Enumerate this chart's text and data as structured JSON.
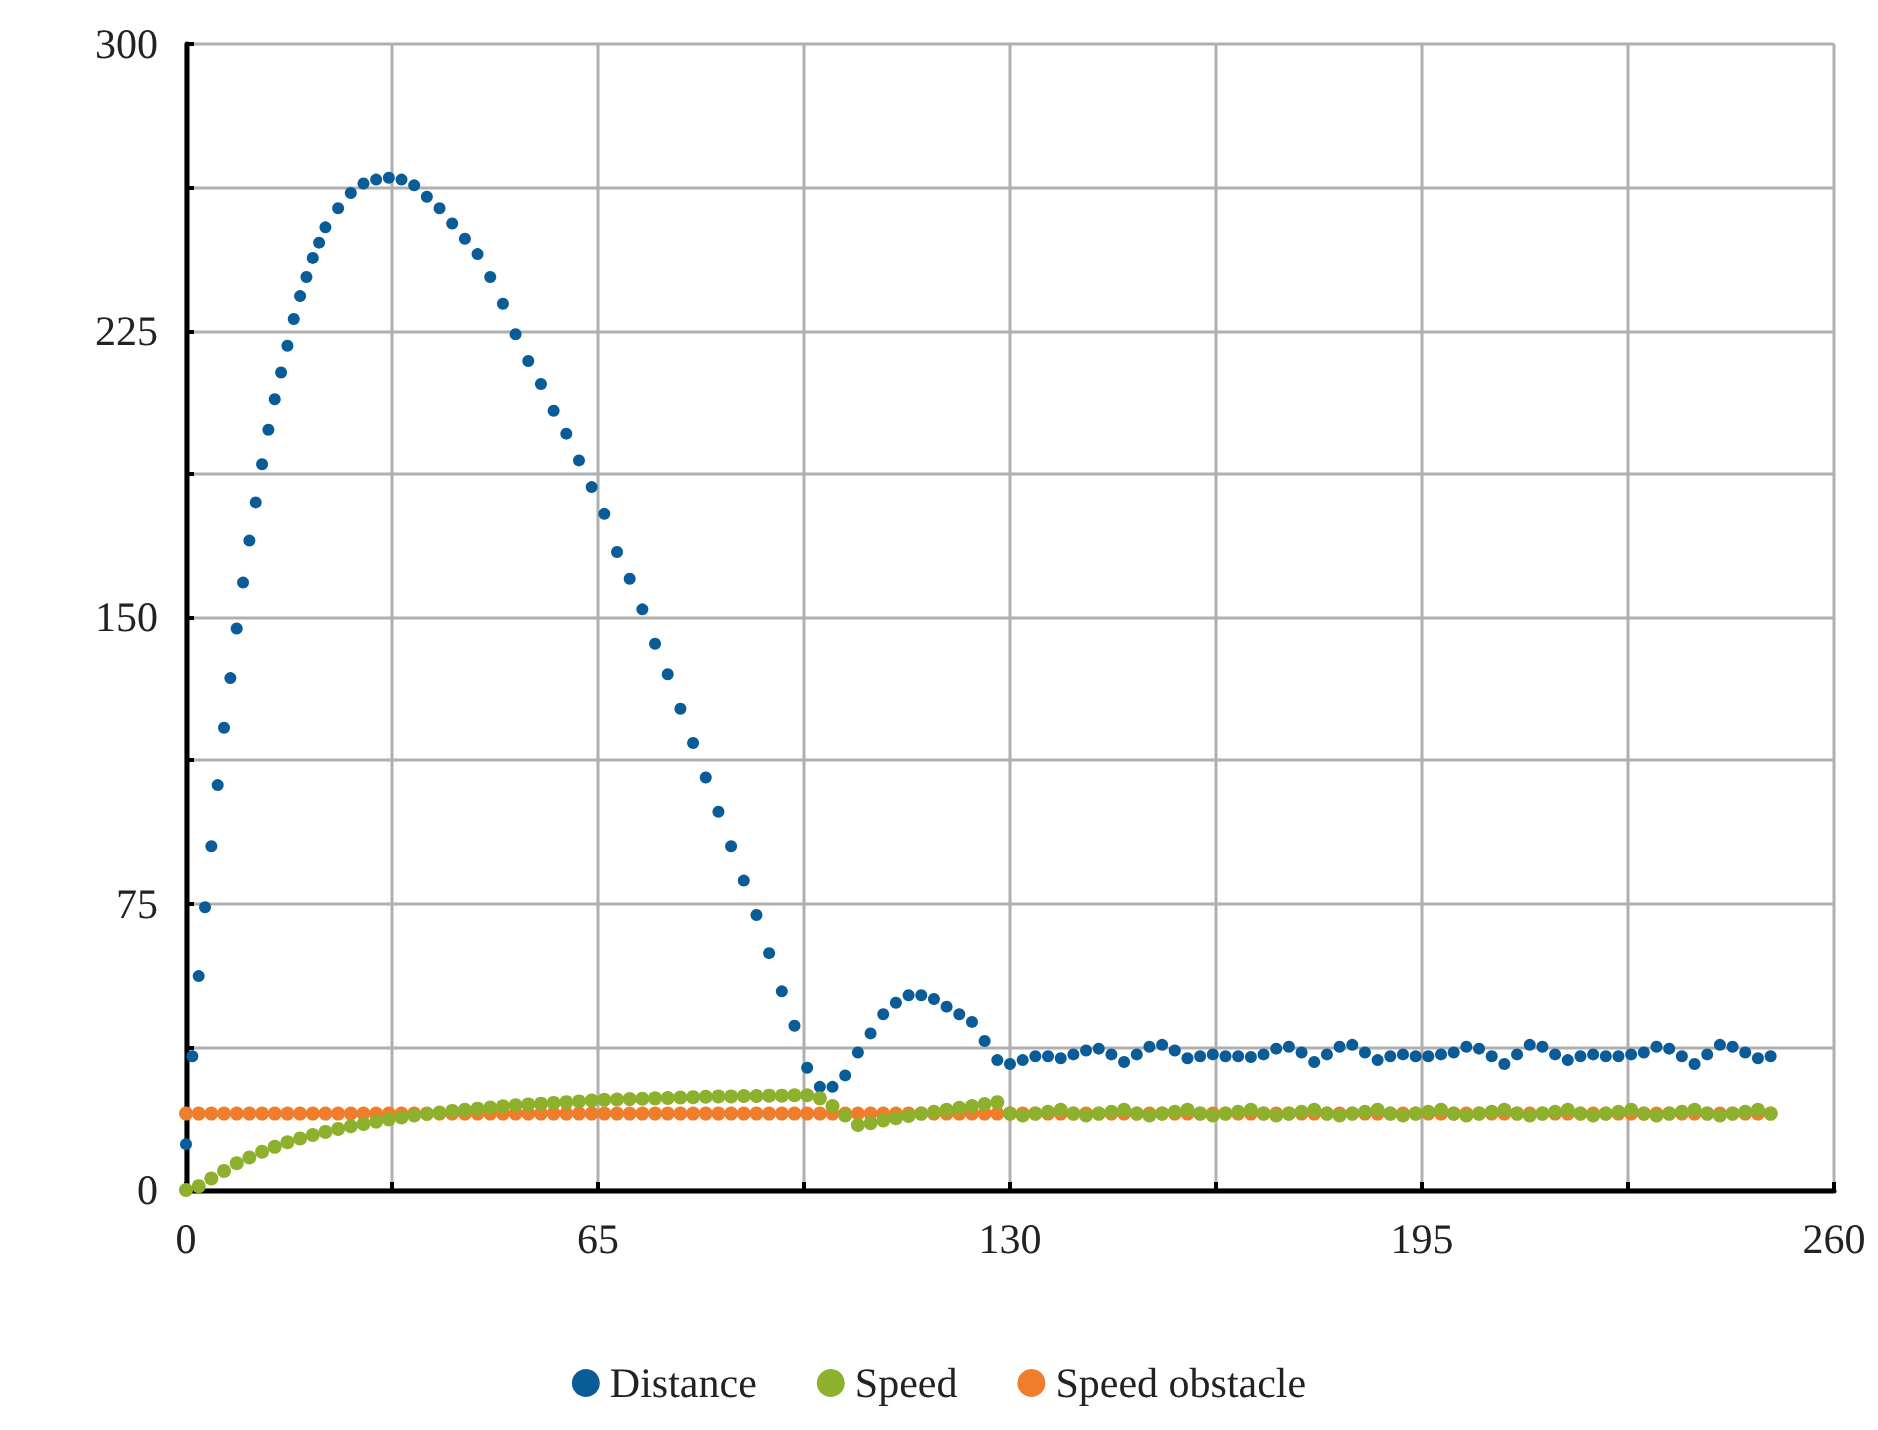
{
  "chart_data": {
    "type": "scatter",
    "marker": "circle",
    "grid": true,
    "legend": "bottom",
    "xlim": [
      0,
      260
    ],
    "xticks": [
      0,
      {
        "value": 32.5,
        "label": null
      },
      65,
      {
        "value": 97.5,
        "label": null
      },
      130,
      {
        "value": 162.5,
        "label": null
      },
      195,
      {
        "value": 227.5,
        "label": null
      },
      260
    ],
    "ylim": [
      0,
      300
    ],
    "yticks": [
      0,
      {
        "value": 37.5,
        "label": null
      },
      75,
      {
        "value": 112.5,
        "label": null
      },
      150,
      {
        "value": 187.5,
        "label": null
      },
      225,
      {
        "value": 262.5,
        "label": null
      },
      300
    ],
    "x": [
      0,
      2,
      4,
      6,
      8,
      10,
      12,
      14,
      16,
      18,
      20,
      22,
      24,
      26,
      28,
      30,
      32,
      34,
      36,
      38,
      40,
      42,
      44,
      46,
      48,
      50,
      52,
      54,
      56,
      58,
      60,
      62,
      64,
      66,
      68,
      70,
      72,
      74,
      76,
      78,
      80,
      82,
      84,
      86,
      88,
      90,
      92,
      94,
      96,
      98,
      100,
      102,
      104,
      106,
      108,
      110,
      112,
      114,
      116,
      118,
      120,
      122,
      124,
      126,
      128,
      130,
      132,
      134,
      136,
      138,
      140,
      142,
      144,
      146,
      148,
      150,
      152,
      154,
      156,
      158,
      160,
      162,
      164,
      166,
      168,
      170,
      172,
      174,
      176,
      178,
      180,
      182,
      184,
      186,
      188,
      190,
      192,
      194,
      196,
      198,
      200,
      202,
      204,
      206,
      208,
      210,
      212,
      214,
      216,
      218,
      220,
      222,
      224,
      226,
      228,
      230,
      232,
      234,
      236,
      238,
      240,
      242,
      244,
      246,
      248,
      250
    ],
    "series": [
      {
        "name": "Distance",
        "color": "#0a5c99",
        "x": [
          0,
          1,
          2,
          3,
          4,
          5,
          6,
          7,
          8,
          9,
          10,
          11,
          12,
          13,
          14,
          15,
          16,
          17,
          18,
          19,
          20,
          21,
          22,
          24,
          26,
          28,
          30,
          32,
          34,
          36,
          38,
          40,
          42,
          44,
          46,
          48,
          50,
          52,
          54,
          56,
          58,
          60,
          62,
          64,
          66,
          68,
          70,
          72,
          74,
          76,
          78,
          80,
          82,
          84,
          86,
          88,
          90,
          92,
          94,
          96,
          98,
          100,
          102,
          104,
          106,
          108,
          110,
          112,
          114,
          116,
          118,
          120,
          122,
          124,
          126,
          128,
          130,
          132,
          134,
          136,
          138,
          140,
          142,
          144,
          146,
          148,
          150,
          152,
          154,
          156,
          158,
          160,
          162,
          164,
          166,
          168,
          170,
          172,
          174,
          176,
          178,
          180,
          182,
          184,
          186,
          188,
          190,
          192,
          194,
          196,
          198,
          200,
          202,
          204,
          206,
          208,
          210,
          212,
          214,
          216,
          218,
          220,
          222,
          224,
          226,
          228,
          230,
          232,
          234,
          236,
          238,
          240,
          242,
          244,
          246,
          248,
          250
        ],
        "values": [
          12,
          35,
          56,
          74,
          90,
          106,
          121,
          134,
          147,
          159,
          170,
          180,
          190,
          199,
          207,
          214,
          221,
          228,
          234,
          239,
          244,
          248,
          252,
          257,
          261,
          263.5,
          264.5,
          265,
          264.5,
          263,
          260,
          257,
          253,
          249,
          245,
          239,
          232,
          224,
          217,
          211,
          204,
          198,
          191,
          184,
          177,
          167,
          160,
          152,
          143,
          135,
          126,
          117,
          108,
          99,
          90,
          81,
          72,
          62,
          52,
          43,
          32,
          27,
          27,
          30,
          36,
          41,
          46,
          49,
          51,
          51,
          50,
          48,
          46,
          44,
          39,
          34,
          33,
          34,
          35,
          35,
          34.5,
          35.5,
          36.5,
          37,
          35.5,
          33.5,
          35.5,
          37.5,
          38,
          36.5,
          34.5,
          35,
          35.5,
          35,
          35,
          34.8,
          35.5,
          37,
          37.5,
          36,
          33.5,
          35.5,
          37.5,
          38,
          36,
          34,
          35,
          35.5,
          35,
          35,
          35.5,
          36,
          37.5,
          37,
          35,
          33,
          35.5,
          38,
          37.5,
          35.5,
          34,
          35,
          35.5,
          35,
          35,
          35.5,
          36,
          37.5,
          37,
          35,
          33,
          35.5,
          38,
          37.5,
          36,
          34.5,
          35
        ]
      },
      {
        "name": "Speed",
        "color": "#8db12c",
        "values": [
          0,
          1,
          3,
          5,
          7,
          8.5,
          10,
          11.3,
          12.5,
          13.5,
          14.4,
          15.2,
          16,
          16.7,
          17.3,
          17.9,
          18.5,
          19,
          19.5,
          19.9,
          20.3,
          20.7,
          21,
          21.3,
          21.6,
          21.9,
          22.2,
          22.4,
          22.6,
          22.8,
          23,
          23.2,
          23.4,
          23.6,
          23.7,
          23.8,
          23.9,
          24,
          24.1,
          24.2,
          24.3,
          24.4,
          24.5,
          24.5,
          24.6,
          24.6,
          24.7,
          24.7,
          24.8,
          24.8,
          24,
          22,
          19.5,
          17,
          17.5,
          18.2,
          18.8,
          19.4,
          20,
          20.5,
          21,
          21.5,
          22,
          22.5,
          23,
          20,
          19.5,
          20,
          20.5,
          21,
          20,
          19.5,
          20,
          20.5,
          21,
          20,
          19.5,
          20,
          20.5,
          21,
          20,
          19.5,
          20,
          20.5,
          21,
          20,
          19.5,
          20,
          20.5,
          21,
          20,
          19.5,
          20,
          20.5,
          21,
          20,
          19.5,
          20,
          20.5,
          21,
          20,
          19.5,
          20,
          20.5,
          21,
          20,
          19.5,
          20,
          20.5,
          21,
          20,
          19.5,
          20,
          20.5,
          21,
          20,
          19.5,
          20,
          20.5,
          21,
          20,
          19.5,
          20,
          20.5,
          21,
          20
        ]
      },
      {
        "name": "Speed obstacle",
        "color": "#f07d2b",
        "values": [
          20,
          20,
          20,
          20,
          20,
          20,
          20,
          20,
          20,
          20,
          20,
          20,
          20,
          20,
          20,
          20,
          20,
          20,
          20,
          20,
          20,
          20,
          20,
          20,
          20,
          20,
          20,
          20,
          20,
          20,
          20,
          20,
          20,
          20,
          20,
          20,
          20,
          20,
          20,
          20,
          20,
          20,
          20,
          20,
          20,
          20,
          20,
          20,
          20,
          20,
          20,
          20,
          20,
          20,
          20,
          20,
          20,
          20,
          20,
          20,
          20,
          20,
          20,
          20,
          20,
          20,
          20,
          20,
          20,
          20,
          20,
          20,
          20,
          20,
          20,
          20,
          20,
          20,
          20,
          20,
          20,
          20,
          20,
          20,
          20,
          20,
          20,
          20,
          20,
          20,
          20,
          20,
          20,
          20,
          20,
          20,
          20,
          20,
          20,
          20,
          20,
          20,
          20,
          20,
          20,
          20,
          20,
          20,
          20,
          20,
          20,
          20,
          20,
          20,
          20,
          20,
          20,
          20,
          20,
          20,
          20,
          20,
          20,
          20,
          20,
          20
        ]
      }
    ]
  }
}
